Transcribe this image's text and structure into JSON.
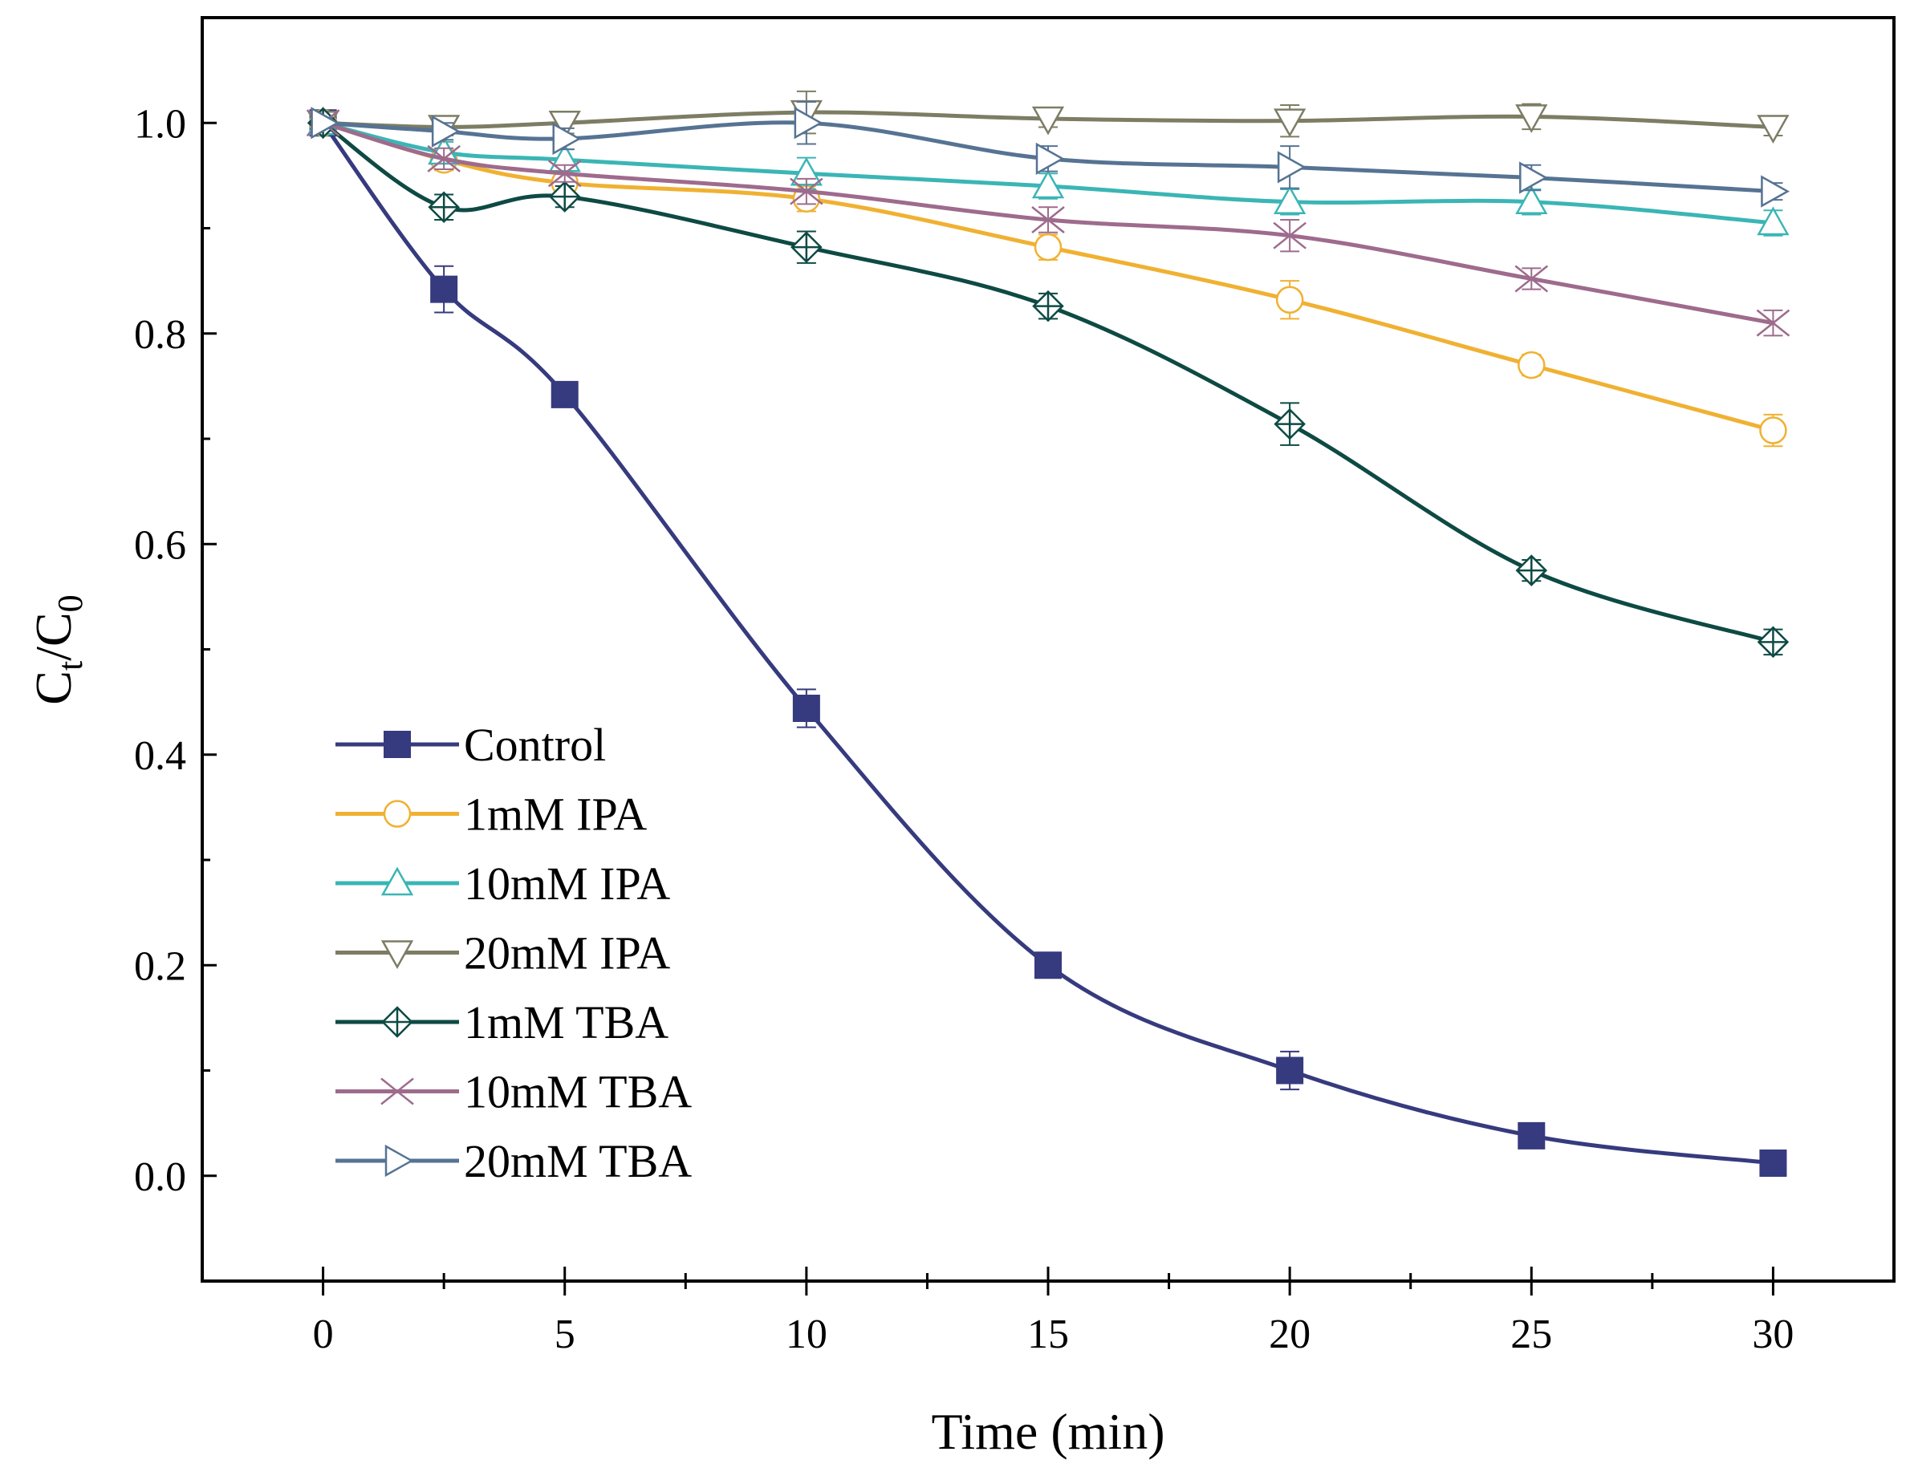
{
  "chart_data": {
    "type": "line",
    "title": "",
    "xlabel": "Time (min)",
    "ylabel": {
      "main": "C",
      "sub1": "t",
      "sep": "/C",
      "sub2": "0"
    },
    "xlim": [
      -2.5,
      32.5
    ],
    "ylim": [
      -0.1,
      1.1
    ],
    "xticks": [
      0,
      5,
      10,
      15,
      20,
      25,
      30
    ],
    "yticks": [
      0.0,
      0.2,
      0.4,
      0.6,
      0.8,
      1.0
    ],
    "xtick_labels": [
      "0",
      "5",
      "10",
      "15",
      "20",
      "25",
      "30"
    ],
    "ytick_labels": [
      "0.0",
      "0.2",
      "0.4",
      "0.6",
      "0.8",
      "1.0"
    ],
    "x": [
      0,
      2.5,
      5,
      10,
      15,
      20,
      25,
      30
    ],
    "legend_position": "bottom-left",
    "series": [
      {
        "name": "Control",
        "color": "#363a7e",
        "marker": "square-filled",
        "values": [
          1.0,
          0.842,
          0.742,
          0.444,
          0.2,
          0.1,
          0.038,
          0.012
        ],
        "errors": [
          0.005,
          0.022,
          0.005,
          0.018,
          0.005,
          0.018,
          0.005,
          0.005
        ]
      },
      {
        "name": "1mM IPA",
        "color": "#f0b132",
        "marker": "circle-open",
        "values": [
          1.0,
          0.965,
          0.943,
          0.928,
          0.882,
          0.832,
          0.77,
          0.708
        ],
        "errors": [
          0.005,
          0.01,
          0.008,
          0.012,
          0.012,
          0.018,
          0.01,
          0.015
        ]
      },
      {
        "name": "10mM IPA",
        "color": "#3bb5b5",
        "marker": "triangle-up-open",
        "values": [
          1.0,
          0.972,
          0.965,
          0.952,
          0.94,
          0.925,
          0.925,
          0.905
        ],
        "errors": [
          0.005,
          0.01,
          0.01,
          0.015,
          0.012,
          0.012,
          0.012,
          0.012
        ]
      },
      {
        "name": "20mM IPA",
        "color": "#7d7d64",
        "marker": "triangle-down-open",
        "values": [
          1.0,
          0.996,
          1.0,
          1.01,
          1.004,
          1.002,
          1.006,
          0.996
        ],
        "errors": [
          0.005,
          0.008,
          0.01,
          0.02,
          0.008,
          0.015,
          0.012,
          0.008
        ]
      },
      {
        "name": "1mM TBA",
        "color": "#0e4a44",
        "marker": "diamond-cross",
        "values": [
          1.0,
          0.92,
          0.93,
          0.882,
          0.826,
          0.714,
          0.575,
          0.507
        ],
        "errors": [
          0.005,
          0.012,
          0.01,
          0.015,
          0.012,
          0.02,
          0.01,
          0.012
        ]
      },
      {
        "name": "10mM TBA",
        "color": "#9e6b8d",
        "marker": "x-cross",
        "values": [
          1.0,
          0.966,
          0.952,
          0.935,
          0.908,
          0.893,
          0.852,
          0.81
        ],
        "errors": [
          0.005,
          0.01,
          0.008,
          0.012,
          0.012,
          0.015,
          0.01,
          0.012
        ]
      },
      {
        "name": "20mM TBA",
        "color": "#567393",
        "marker": "triangle-right-open",
        "values": [
          1.0,
          0.992,
          0.985,
          1.0,
          0.966,
          0.958,
          0.948,
          0.935
        ],
        "errors": [
          0.005,
          0.008,
          0.01,
          0.02,
          0.012,
          0.02,
          0.012,
          0.008
        ]
      }
    ]
  }
}
